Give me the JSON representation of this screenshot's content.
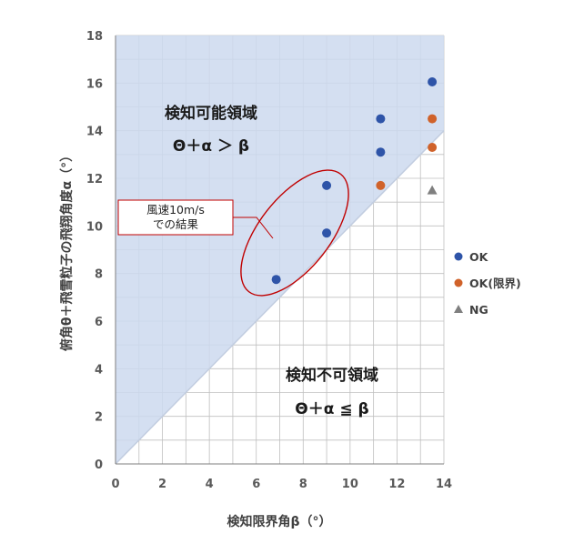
{
  "chart_data": {
    "type": "scatter",
    "xlabel": "検知限界角β（°）",
    "ylabel": "俯角θ＋飛雪粒子の飛翔角度α（°）",
    "xlim": [
      0,
      14
    ],
    "ylim": [
      0,
      18
    ],
    "x_ticks": [
      "0",
      "2",
      "4",
      "6",
      "8",
      "10",
      "12",
      "14"
    ],
    "y_ticks": [
      "0",
      "2",
      "4",
      "6",
      "8",
      "10",
      "12",
      "14",
      "16",
      "18"
    ],
    "grid": true,
    "legend_position": "right",
    "boundary_line": {
      "from": [
        0,
        0
      ],
      "to": [
        14,
        14
      ]
    },
    "colors": {
      "region_fill": "#cdd9ee",
      "grid": "#bfbfbf",
      "boundary": "#c2cde0",
      "highlight": "#c00000"
    },
    "series": [
      {
        "name": "OK",
        "color": "#2e54a8",
        "marker": "circle",
        "points": [
          [
            6.85,
            7.75
          ],
          [
            9.0,
            9.7
          ],
          [
            9.0,
            11.7
          ],
          [
            11.3,
            13.1
          ],
          [
            11.3,
            14.5
          ],
          [
            13.5,
            16.05
          ]
        ]
      },
      {
        "name": "OK(限界)",
        "color": "#d0622a",
        "marker": "circle",
        "points": [
          [
            11.3,
            11.7
          ],
          [
            13.5,
            13.3
          ],
          [
            13.5,
            14.5
          ]
        ]
      },
      {
        "name": "NG",
        "color": "#7f7f7f",
        "marker": "triangle",
        "points": [
          [
            13.5,
            11.5
          ]
        ]
      }
    ],
    "region_labels": {
      "detectable_title": "検知可能領域",
      "detectable_formula": "Θ＋α ＞ β",
      "undetectable_title": "検知不可領域",
      "undetectable_formula": "Θ＋α ≦ β"
    },
    "callout": {
      "lines": [
        "風速10m/s",
        "での結果"
      ]
    }
  }
}
